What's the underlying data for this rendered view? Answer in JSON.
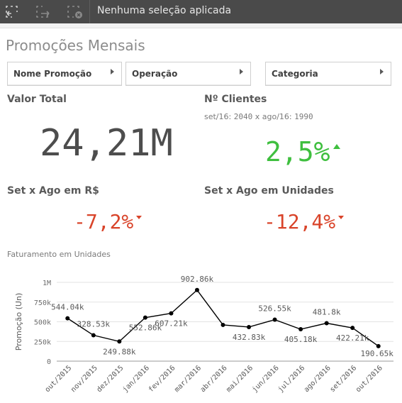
{
  "toolbar": {
    "selection_status": "Nenhuma seleção aplicada",
    "icons": [
      "selections-lasso-icon",
      "step-forward-icon",
      "clear-selections-icon"
    ]
  },
  "sheet": {
    "title": "Promoções Mensais"
  },
  "filters": [
    {
      "label": "Nome Promoção"
    },
    {
      "label": "Operação"
    },
    {
      "label": "Categoria"
    }
  ],
  "kpis": {
    "valor_total": {
      "title": "Valor Total",
      "value": "24,21M"
    },
    "n_clientes": {
      "title": "Nº Clientes",
      "sub_a": "set/16:",
      "sub_a_value": "2040",
      "sub_mid": "x ago/16:",
      "sub_b_value": "1990",
      "value": "2,5%",
      "trend": "up"
    },
    "set_ago_rs": {
      "title": "Set x Ago em R$",
      "value": "-7,2%",
      "trend": "down"
    },
    "set_ago_un": {
      "title": "Set x Ago em Unidades",
      "value": "-12,4%",
      "trend": "down"
    }
  },
  "colors": {
    "positive": "#3fbf3f",
    "negative": "#d9442a",
    "text": "#595959",
    "toolbar_bg": "#4a4a4a"
  },
  "chart_data": {
    "type": "line",
    "title": "Faturamento em Unidades",
    "ylabel": "Promoção (Un)",
    "xlabel": "",
    "ylim": [
      0,
      1000000
    ],
    "yticks": [
      0,
      250000,
      500000,
      750000,
      1000000
    ],
    "ytick_labels": [
      "0",
      "250k",
      "500k",
      "750k",
      "1M"
    ],
    "grid": true,
    "categories": [
      "out/2015",
      "nov/2015",
      "dez/2015",
      "jan/2016",
      "fev/2016",
      "mar/2016",
      "abr/2016",
      "mai/2016",
      "jun/2016",
      "jul/2016",
      "ago/2016",
      "set/2016",
      "out/2016"
    ],
    "values": [
      544040,
      328530,
      249880,
      552860,
      607210,
      902860,
      460000,
      432830,
      526550,
      405180,
      481800,
      422210,
      190650
    ],
    "data_labels": [
      "544.04k",
      "328.53k",
      "249.88k",
      "552.86k",
      "607.21k",
      "902.86k",
      "",
      "432.83k",
      "526.55k",
      "405.18k",
      "481.8k",
      "422.21k",
      "190.65k"
    ]
  }
}
